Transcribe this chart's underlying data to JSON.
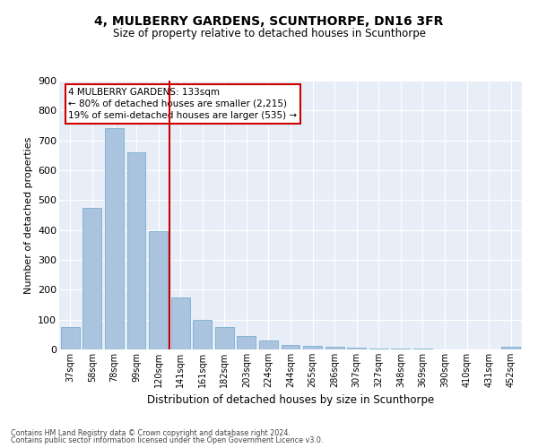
{
  "title": "4, MULBERRY GARDENS, SCUNTHORPE, DN16 3FR",
  "subtitle": "Size of property relative to detached houses in Scunthorpe",
  "xlabel": "Distribution of detached houses by size in Scunthorpe",
  "ylabel": "Number of detached properties",
  "categories": [
    "37sqm",
    "58sqm",
    "78sqm",
    "99sqm",
    "120sqm",
    "141sqm",
    "161sqm",
    "182sqm",
    "203sqm",
    "224sqm",
    "244sqm",
    "265sqm",
    "286sqm",
    "307sqm",
    "327sqm",
    "348sqm",
    "369sqm",
    "390sqm",
    "410sqm",
    "431sqm",
    "452sqm"
  ],
  "values": [
    75,
    475,
    740,
    660,
    395,
    175,
    100,
    75,
    45,
    30,
    15,
    12,
    10,
    6,
    3,
    3,
    2,
    1,
    0,
    0,
    8
  ],
  "bar_color": "#aac4e0",
  "bar_edge_color": "#7aaece",
  "bg_color": "#e8eef7",
  "grid_color": "#ffffff",
  "vline_x": 4.5,
  "vline_color": "#cc0000",
  "annotation_title": "4 MULBERRY GARDENS: 133sqm",
  "annotation_line1": "← 80% of detached houses are smaller (2,215)",
  "annotation_line2": "19% of semi-detached houses are larger (535) →",
  "annotation_box_color": "#cc0000",
  "ylim": [
    0,
    900
  ],
  "yticks": [
    0,
    100,
    200,
    300,
    400,
    500,
    600,
    700,
    800,
    900
  ],
  "footnote1": "Contains HM Land Registry data © Crown copyright and database right 2024.",
  "footnote2": "Contains public sector information licensed under the Open Government Licence v3.0."
}
